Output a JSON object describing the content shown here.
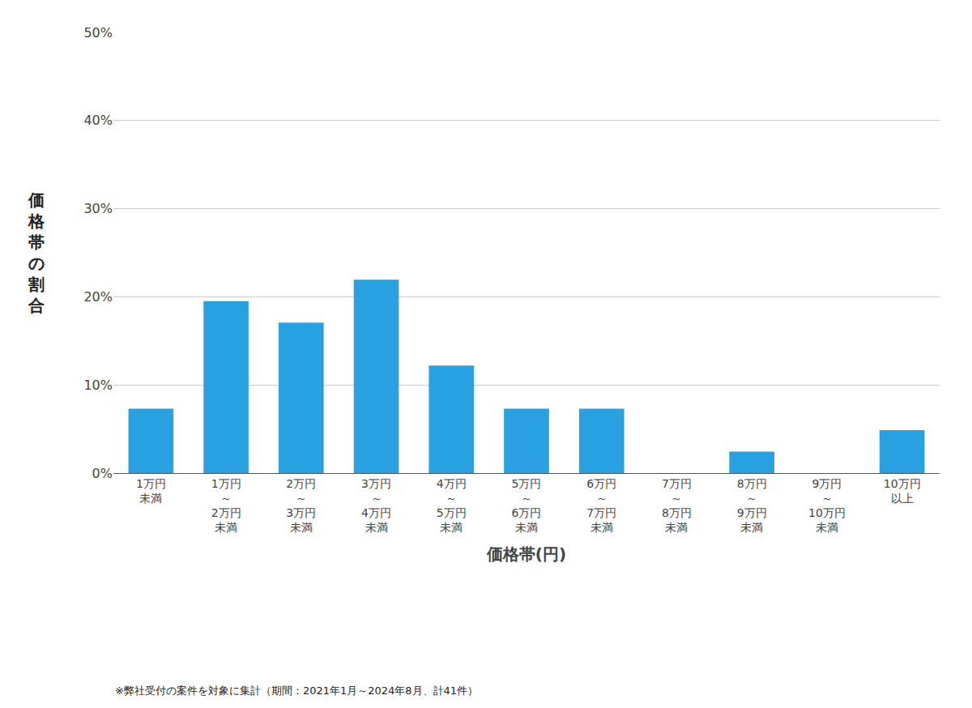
{
  "chart_data": {
    "type": "bar",
    "xlabel": "価格帯(円)",
    "ylabel": "価格帯の割合",
    "annotations": [
      "※弊社受付の案件を対象に集計（期間：2021年1月～2024年8月、計41件）"
    ],
    "categories": [
      "1万円\n未満",
      "1万円\n～\n2万円\n未満",
      "2万円\n～\n3万円\n未満",
      "3万円\n～\n4万円\n未満",
      "4万円\n～\n5万円\n未満",
      "5万円\n～\n6万円\n未満",
      "6万円\n～\n7万円\n未満",
      "7万円\n～\n8万円\n未満",
      "8万円\n～\n9万円\n未満",
      "9万円\n～\n10万円\n未満",
      "10万円\n以上"
    ],
    "values": [
      7.317,
      19.512,
      17.073,
      21.951,
      12.195,
      7.317,
      7.317,
      0.0,
      2.439,
      0.0,
      4.878
    ],
    "color": "#29a0e0",
    "ylim": [
      0,
      50
    ],
    "yticks": [
      {
        "value": 0,
        "label": "0%"
      },
      {
        "value": 10,
        "label": "10%"
      },
      {
        "value": 20,
        "label": "20%"
      },
      {
        "value": 30,
        "label": "30%"
      },
      {
        "value": 40,
        "label": "40%"
      },
      {
        "value": 50,
        "label": "50%"
      }
    ],
    "grid": true
  }
}
